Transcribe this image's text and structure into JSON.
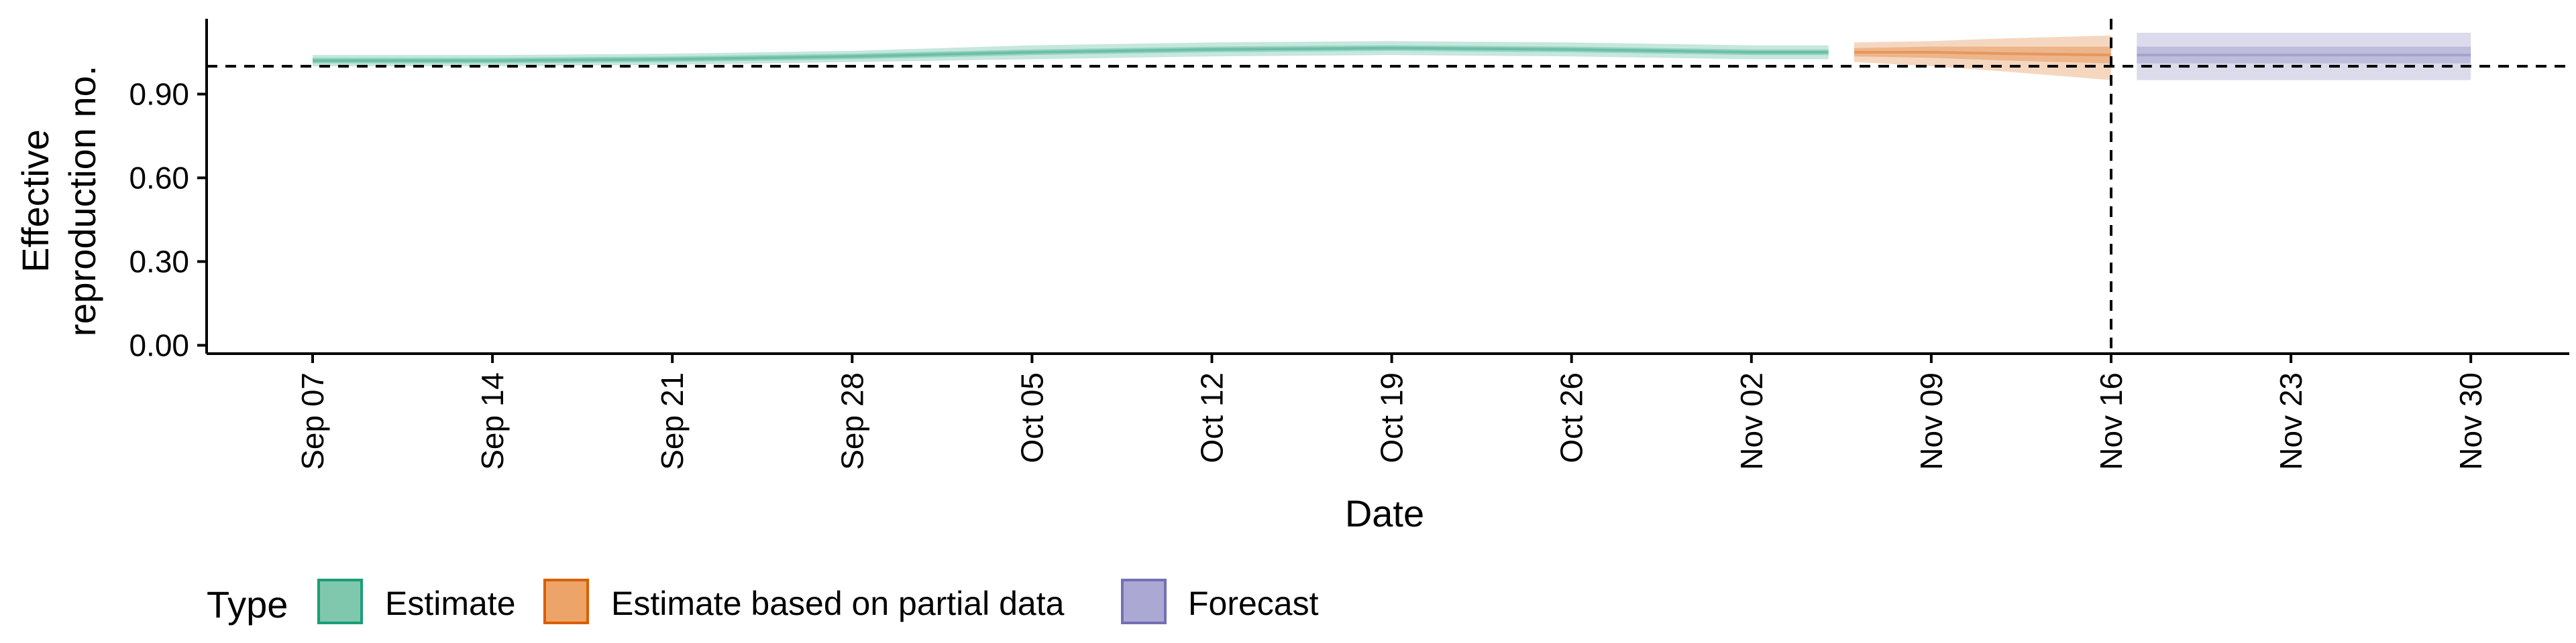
{
  "chart_data": {
    "type": "area",
    "xlabel": "Date",
    "ylabel": [
      "Effective",
      "reproduction no."
    ],
    "ylim": [
      -0.03,
      1.17
    ],
    "y_ticks": [
      "0.00",
      "0.30",
      "0.60",
      "0.90"
    ],
    "y_tick_values": [
      0,
      0.3,
      0.6,
      0.9
    ],
    "x_range": [
      "2020-09-07",
      "2020-11-30"
    ],
    "x_ticks": [
      "Sep 07",
      "Sep 14",
      "Sep 21",
      "Sep 28",
      "Oct 05",
      "Oct 12",
      "Oct 19",
      "Oct 26",
      "Nov 02",
      "Nov 09",
      "Nov 16",
      "Nov 23",
      "Nov 30"
    ],
    "x_tick_dates": [
      "2020-09-07",
      "2020-09-14",
      "2020-09-21",
      "2020-09-28",
      "2020-10-05",
      "2020-10-12",
      "2020-10-19",
      "2020-10-26",
      "2020-11-02",
      "2020-11-09",
      "2020-11-16",
      "2020-11-23",
      "2020-11-30"
    ],
    "reference_line_y": 1.0,
    "vertical_line_date": "2020-11-16",
    "grid": false,
    "legend": {
      "title": "Type",
      "position": "bottom-left",
      "items": [
        {
          "label": "Estimate",
          "fill": "#7fc7ad",
          "stroke": "#1b9e77"
        },
        {
          "label": "Estimate based on partial data",
          "fill": "#eda468",
          "stroke": "#d95f02"
        },
        {
          "label": "Forecast",
          "fill": "#aba8d4",
          "stroke": "#7570b3"
        }
      ]
    },
    "series": [
      {
        "name": "Estimate",
        "color": "#1b9e77",
        "x": [
          "2020-09-07",
          "2020-09-14",
          "2020-09-21",
          "2020-09-28",
          "2020-10-05",
          "2020-10-12",
          "2020-10-19",
          "2020-10-26",
          "2020-11-02",
          "2020-11-05"
        ],
        "median": [
          1.02,
          1.02,
          1.025,
          1.035,
          1.05,
          1.06,
          1.065,
          1.06,
          1.05,
          1.05
        ],
        "lower_90": [
          1.0,
          1.0,
          1.005,
          1.015,
          1.025,
          1.035,
          1.04,
          1.035,
          1.025,
          1.025
        ],
        "upper_90": [
          1.04,
          1.04,
          1.045,
          1.055,
          1.075,
          1.085,
          1.09,
          1.085,
          1.075,
          1.075
        ],
        "lower_50": [
          1.01,
          1.01,
          1.015,
          1.025,
          1.04,
          1.05,
          1.055,
          1.05,
          1.04,
          1.04
        ],
        "upper_50": [
          1.03,
          1.03,
          1.035,
          1.045,
          1.06,
          1.07,
          1.075,
          1.07,
          1.06,
          1.06
        ]
      },
      {
        "name": "Estimate based on partial data",
        "color": "#d95f02",
        "x": [
          "2020-11-06",
          "2020-11-09",
          "2020-11-12",
          "2020-11-16"
        ],
        "median": [
          1.05,
          1.05,
          1.045,
          1.04
        ],
        "lower_90": [
          1.015,
          1.0,
          0.98,
          0.95
        ],
        "upper_90": [
          1.085,
          1.09,
          1.1,
          1.11
        ],
        "lower_50": [
          1.035,
          1.03,
          1.02,
          1.01
        ],
        "upper_50": [
          1.065,
          1.07,
          1.07,
          1.07
        ]
      },
      {
        "name": "Forecast",
        "color": "#7570b3",
        "x": [
          "2020-11-17",
          "2020-11-30"
        ],
        "median": [
          1.04,
          1.04
        ],
        "lower_90": [
          0.95,
          0.95
        ],
        "upper_90": [
          1.12,
          1.12
        ],
        "lower_50": [
          1.01,
          1.01
        ],
        "upper_50": [
          1.07,
          1.07
        ]
      }
    ]
  }
}
